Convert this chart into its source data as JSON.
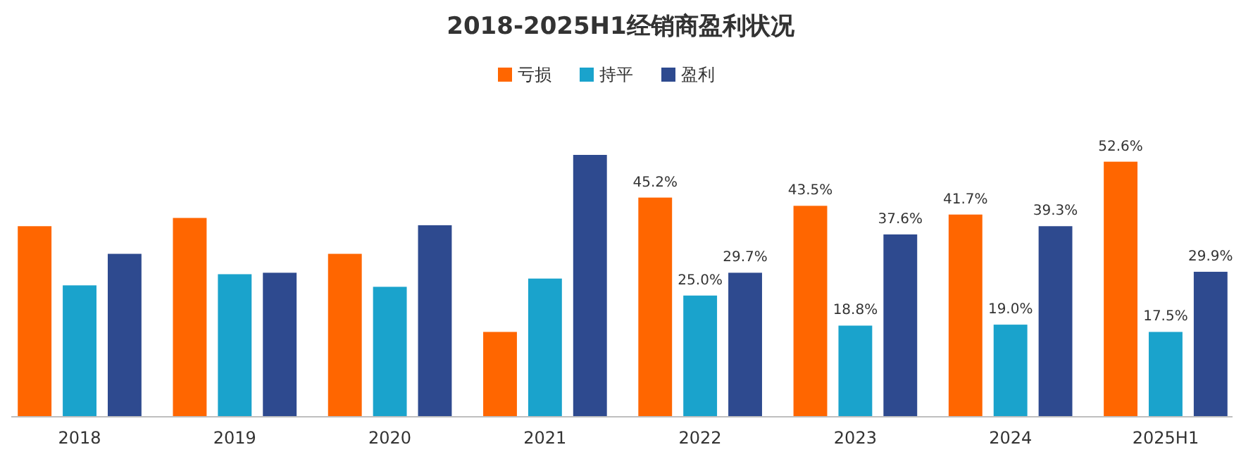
{
  "chart_data": {
    "type": "bar",
    "title": "2018-2025H1经销商盈利状况",
    "categories": [
      "2018",
      "2019",
      "2020",
      "2021",
      "2022",
      "2023",
      "2024",
      "2025H1"
    ],
    "series": [
      {
        "name": "亏损",
        "color": "#ff6600",
        "values": [
          39.3,
          41.0,
          33.6,
          17.5,
          45.2,
          43.5,
          41.7,
          52.6
        ],
        "value_labels": [
          null,
          null,
          null,
          null,
          "45.2%",
          "43.5%",
          "41.7%",
          "52.6%"
        ]
      },
      {
        "name": "持平",
        "color": "#1aa3cc",
        "values": [
          27.1,
          29.4,
          26.8,
          28.5,
          25.0,
          18.8,
          19.0,
          17.5
        ],
        "value_labels": [
          null,
          null,
          null,
          null,
          "25.0%",
          "18.8%",
          "19.0%",
          "17.5%"
        ]
      },
      {
        "name": "盈利",
        "color": "#2e4a8f",
        "values": [
          33.6,
          29.7,
          39.5,
          54.0,
          29.7,
          37.6,
          39.3,
          29.9
        ],
        "value_labels": [
          null,
          null,
          null,
          null,
          "29.7%",
          "37.6%",
          "39.3%",
          "29.9%"
        ]
      }
    ],
    "legend": "top"
  }
}
